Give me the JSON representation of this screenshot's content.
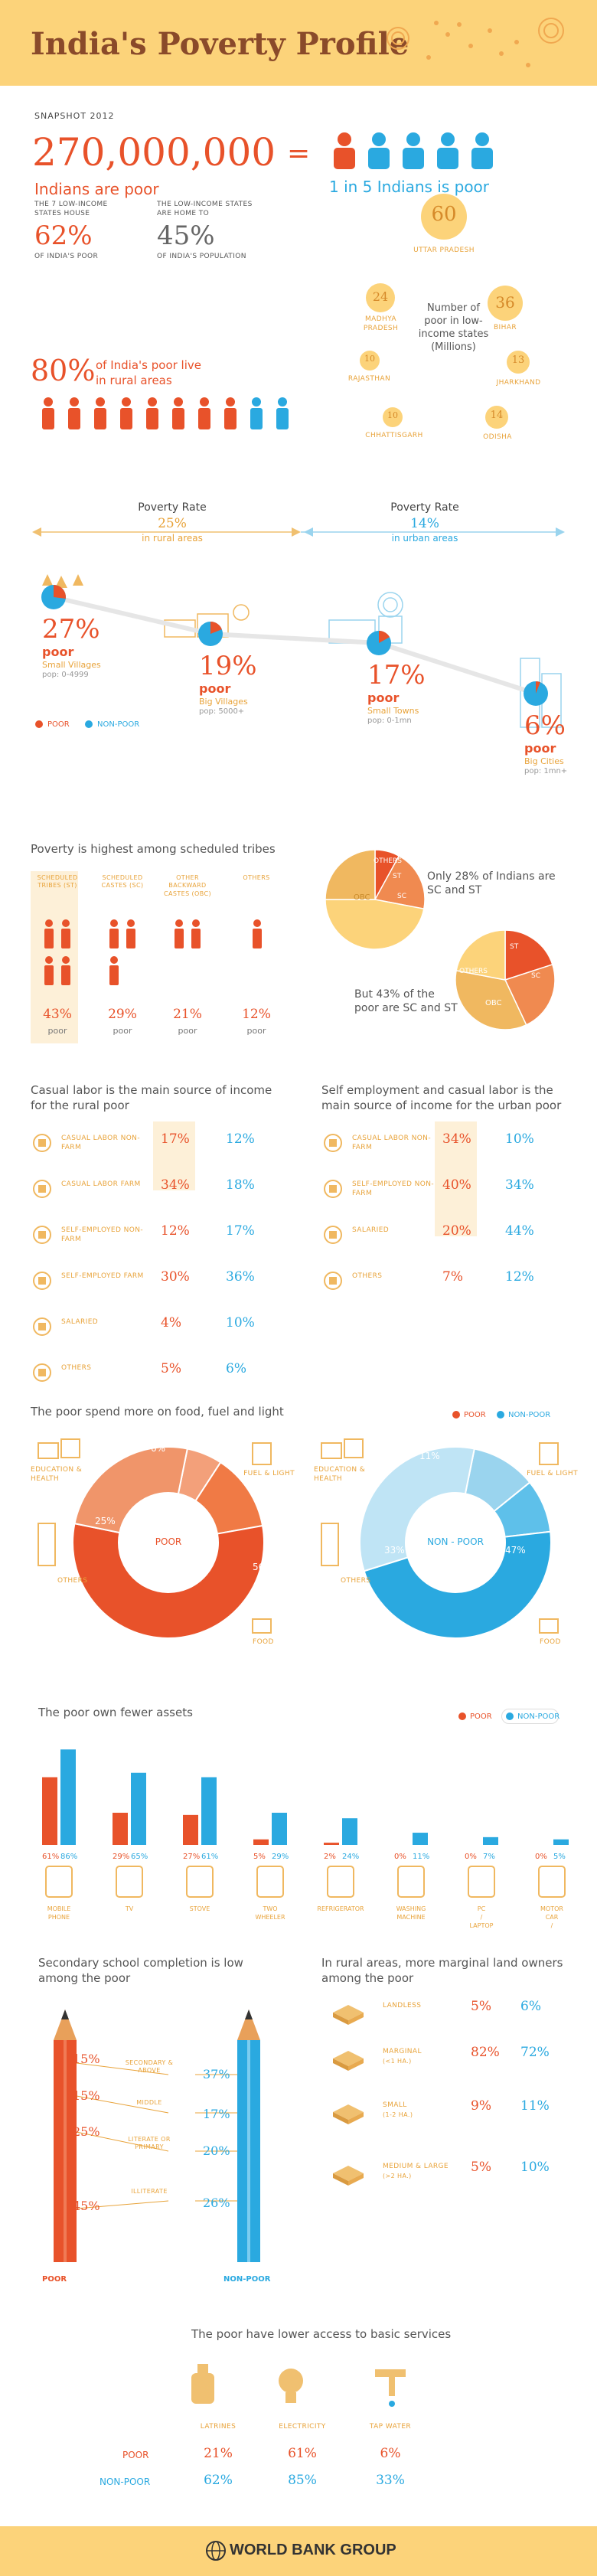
{
  "header": {
    "title": "India's Poverty Profile"
  },
  "snapshot": "SNAPSHOT 2012",
  "headline": {
    "big_number": "270,000,000",
    "sub": "Indians are poor",
    "equals": "=",
    "ratio": "1 in 5 Indians is poor"
  },
  "states": {
    "a_label": "THE 7 LOW-INCOME STATES HOUSE",
    "a_value": "62%",
    "a_sub": "OF INDIA'S POOR",
    "b_label": "THE LOW-INCOME STATES ARE HOME TO",
    "b_value": "45%",
    "b_sub": "OF INDIA'S POPULATION",
    "center_label": "Number of poor in low-income states (Millions)",
    "bubbles": [
      {
        "name": "UTTAR PRADESH",
        "value": "60"
      },
      {
        "name": "BIHAR",
        "value": "36"
      },
      {
        "name": "MADHYA PRADESH",
        "value": "24"
      },
      {
        "name": "JHARKHAND",
        "value": "13"
      },
      {
        "name": "RAJASTHAN",
        "value": "10"
      },
      {
        "name": "CHHATTISGARH",
        "value": "10"
      },
      {
        "name": "ODISHA",
        "value": "14"
      }
    ]
  },
  "rural": {
    "value": "80%",
    "text": "of India's poor live in rural areas"
  },
  "poverty_rate": {
    "rural_title": "Poverty Rate",
    "rural_value": "25%",
    "rural_sub": "in rural areas",
    "urban_title": "Poverty Rate",
    "urban_value": "14%",
    "urban_sub": "in urban areas",
    "points": [
      {
        "pct": "27%",
        "poor": "poor",
        "place": "Small Villages",
        "pop": "pop: 0-4999",
        "value": 27
      },
      {
        "pct": "19%",
        "poor": "poor",
        "place": "Big Villages",
        "pop": "pop: 5000+",
        "value": 19
      },
      {
        "pct": "17%",
        "poor": "poor",
        "place": "Small Towns",
        "pop": "pop: 0-1mn",
        "value": 17
      },
      {
        "pct": "6%",
        "poor": "poor",
        "place": "Big Cities",
        "pop": "pop: 1mn+",
        "value": 6
      }
    ],
    "legend_poor": "POOR",
    "legend_nonpoor": "NON-POOR"
  },
  "tribes": {
    "title": "Poverty is highest among scheduled tribes",
    "groups": [
      {
        "name": "SCHEDULED TRIBES (ST)",
        "value": "43%",
        "sub": "poor"
      },
      {
        "name": "SCHEDULED CASTES (SC)",
        "value": "29%",
        "sub": "poor"
      },
      {
        "name": "OTHER BACKWARD CASTES (OBC)",
        "value": "21%",
        "sub": "poor"
      },
      {
        "name": "OTHERS",
        "value": "12%",
        "sub": "poor"
      }
    ],
    "pie1_text": "Only 28% of Indians are SC and ST",
    "pie2_text": "But 43% of the poor are SC and ST",
    "pie_labels": {
      "others": "OTHERS",
      "st": "ST",
      "sc": "SC",
      "obc": "OBC"
    }
  },
  "labor_rural": {
    "title": "Casual labor is the main source of income for the rural poor",
    "rows": [
      {
        "label": "CASUAL LABOR NON-FARM",
        "poor": "17%",
        "nonpoor": "12%"
      },
      {
        "label": "CASUAL LABOR FARM",
        "poor": "34%",
        "nonpoor": "18%"
      },
      {
        "label": "SELF-EMPLOYED NON-FARM",
        "poor": "12%",
        "nonpoor": "17%"
      },
      {
        "label": "SELF-EMPLOYED FARM",
        "poor": "30%",
        "nonpoor": "36%"
      },
      {
        "label": "SALARIED",
        "poor": "4%",
        "nonpoor": "10%"
      },
      {
        "label": "OTHERS",
        "poor": "5%",
        "nonpoor": "6%"
      }
    ]
  },
  "labor_urban": {
    "title": "Self employment and casual labor is the main source of income for the urban poor",
    "rows": [
      {
        "label": "CASUAL LABOR NON-FARM",
        "poor": "34%",
        "nonpoor": "10%"
      },
      {
        "label": "SELF-EMPLOYED NON-FARM",
        "poor": "40%",
        "nonpoor": "34%"
      },
      {
        "label": "SALARIED",
        "poor": "20%",
        "nonpoor": "44%"
      },
      {
        "label": "OTHERS",
        "poor": "7%",
        "nonpoor": "12%"
      }
    ]
  },
  "spend": {
    "title": "The poor spend more on food, fuel and light",
    "legend_poor": "POOR",
    "legend_nonpoor": "NON-POOR",
    "edu": "EDUCATION & HEALTH",
    "fuel": "FUEL & LIGHT",
    "others": "OTHERS",
    "food": "FOOD",
    "poor_center": "POOR",
    "nonpoor_center": "NON - POOR",
    "poor_vals": {
      "edu": "6%",
      "fuel": "13%",
      "others": "25%",
      "food": "56%"
    },
    "nonpoor_vals": {
      "edu": "11%",
      "fuel": "9%",
      "others": "33%",
      "food": "47%"
    },
    "poor_data": [
      6,
      13,
      56,
      25
    ],
    "nonpoor_data": [
      11,
      9,
      47,
      33
    ]
  },
  "assets": {
    "title": "The poor own fewer assets",
    "legend_poor": "POOR",
    "legend_nonpoor": "NON-POOR",
    "items": [
      {
        "name": "MOBILE PHONE",
        "poor": 61,
        "nonpoor": 86,
        "poor_l": "61%",
        "nonpoor_l": "86%"
      },
      {
        "name": "TV",
        "poor": 29,
        "nonpoor": 65,
        "poor_l": "29%",
        "nonpoor_l": "65%"
      },
      {
        "name": "STOVE",
        "poor": 27,
        "nonpoor": 61,
        "poor_l": "27%",
        "nonpoor_l": "61%"
      },
      {
        "name": "TWO WHEELER",
        "poor": 5,
        "nonpoor": 29,
        "poor_l": "5%",
        "nonpoor_l": "29%"
      },
      {
        "name": "REFRIGERATOR",
        "poor": 2,
        "nonpoor": 24,
        "poor_l": "2%",
        "nonpoor_l": "24%"
      },
      {
        "name": "WASHING MACHINE",
        "poor": 0,
        "nonpoor": 11,
        "poor_l": "0%",
        "nonpoor_l": "11%"
      },
      {
        "name": "PC / LAPTOP",
        "poor": 0,
        "nonpoor": 7,
        "poor_l": "0%",
        "nonpoor_l": "7%"
      },
      {
        "name": "MOTOR CAR / JEEP",
        "poor": 0,
        "nonpoor": 5,
        "poor_l": "0%",
        "nonpoor_l": "5%"
      }
    ]
  },
  "school": {
    "title": "Secondary school completion is low among the poor",
    "rows": [
      {
        "label": "SECONDARY & ABOVE",
        "poor": "15%",
        "nonpoor": "37%"
      },
      {
        "label": "MIDDLE",
        "poor": "15%",
        "nonpoor": "17%"
      },
      {
        "label": "LITERATE OR PRIMARY",
        "poor": "25%",
        "nonpoor": "20%"
      },
      {
        "label": "ILLITERATE",
        "poor": "45%",
        "nonpoor": "26%"
      }
    ],
    "poor_label": "POOR",
    "nonpoor_label": "NON-POOR"
  },
  "land": {
    "title": "In rural areas, more marginal land owners among the poor",
    "rows": [
      {
        "label": "LANDLESS",
        "sub": "",
        "poor": "5%",
        "nonpoor": "6%"
      },
      {
        "label": "MARGINAL",
        "sub": "(<1 HA.)",
        "poor": "82%",
        "nonpoor": "72%"
      },
      {
        "label": "SMALL",
        "sub": "(1-2 HA.)",
        "poor": "9%",
        "nonpoor": "11%"
      },
      {
        "label": "MEDIUM & LARGE",
        "sub": "(>2 HA.)",
        "poor": "5%",
        "nonpoor": "10%"
      }
    ]
  },
  "services": {
    "title": "The poor have lower access to basic services",
    "cols": [
      "LATRINES",
      "ELECTRICITY",
      "TAP WATER"
    ],
    "poor_label": "POOR",
    "nonpoor_label": "NON-POOR",
    "poor": [
      "21%",
      "61%",
      "6%"
    ],
    "nonpoor": [
      "62%",
      "85%",
      "33%"
    ]
  },
  "footer": {
    "logo": "WORLD BANK GROUP"
  },
  "colors": {
    "poor": "#e8522a",
    "nonpoor": "#2aa9e0",
    "accent": "#e8a33a",
    "header": "#fcd37a"
  }
}
